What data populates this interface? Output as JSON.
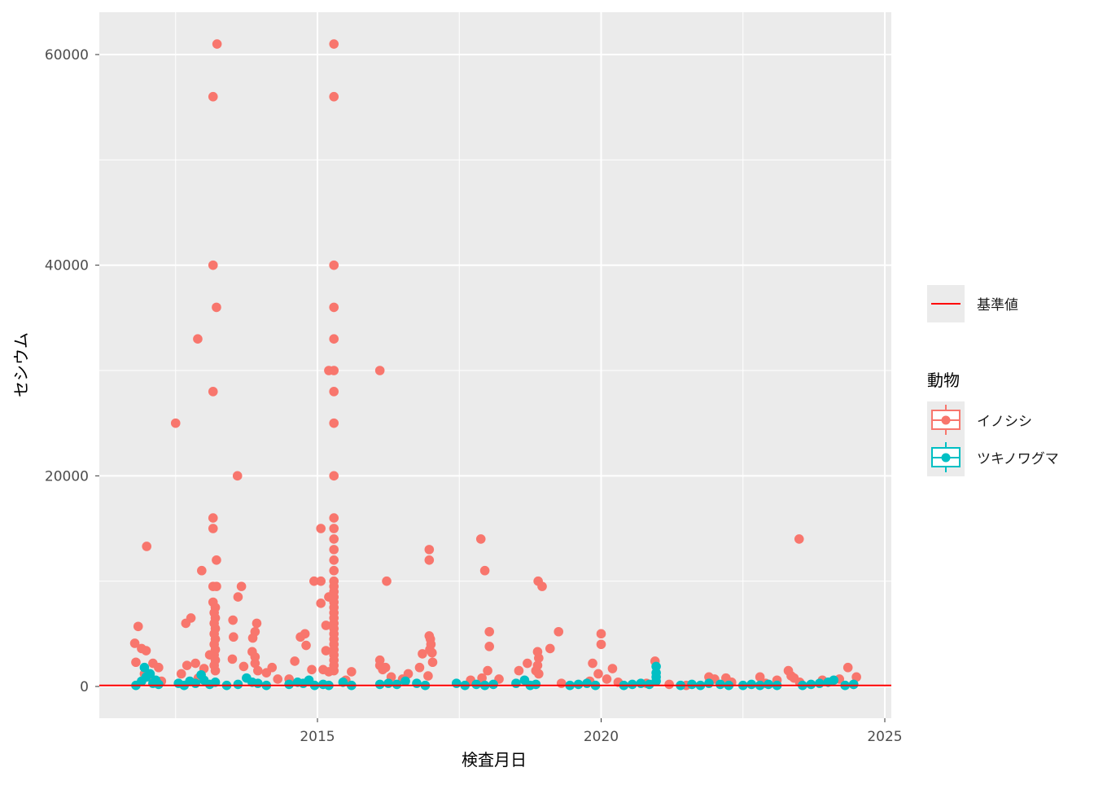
{
  "chart_data": {
    "type": "scatter",
    "xlabel": "検査月日",
    "ylabel": "セシウム",
    "xlim": [
      2011.1,
      2025.1
    ],
    "ylim": [
      -3000,
      64000
    ],
    "x_ticks": [
      2015,
      2020,
      2025
    ],
    "x_tick_labels": [
      "2015",
      "2020",
      "2025"
    ],
    "y_ticks": [
      0,
      20000,
      40000,
      60000
    ],
    "y_tick_labels": [
      "0",
      "20000",
      "40000",
      "60000"
    ],
    "grid": true,
    "legend_position": "right",
    "reference_line": {
      "name": "基準値",
      "value": 100,
      "color": "#FF0000"
    },
    "legend_title": "動物",
    "series": [
      {
        "name": "イノシシ",
        "color": "#F8766D",
        "points": [
          [
            2011.84,
            5700
          ],
          [
            2011.99,
            13300
          ],
          [
            2011.78,
            4100
          ],
          [
            2011.9,
            3600
          ],
          [
            2011.98,
            3400
          ],
          [
            2011.8,
            2300
          ],
          [
            2012.1,
            2200
          ],
          [
            2012.2,
            1800
          ],
          [
            2011.95,
            1200
          ],
          [
            2012.05,
            900
          ],
          [
            2012.25,
            500
          ],
          [
            2012.5,
            25000
          ],
          [
            2012.89,
            33000
          ],
          [
            2013.16,
            56000
          ],
          [
            2013.23,
            61000
          ],
          [
            2013.16,
            40000
          ],
          [
            2013.22,
            36000
          ],
          [
            2013.16,
            28000
          ],
          [
            2013.59,
            20000
          ],
          [
            2013.16,
            16000
          ],
          [
            2013.16,
            15000
          ],
          [
            2013.22,
            12000
          ],
          [
            2012.96,
            11000
          ],
          [
            2013.16,
            9500
          ],
          [
            2013.22,
            9500
          ],
          [
            2013.66,
            9500
          ],
          [
            2013.6,
            8500
          ],
          [
            2013.51,
            6300
          ],
          [
            2013.93,
            6000
          ],
          [
            2012.77,
            6500
          ],
          [
            2012.68,
            6000
          ],
          [
            2013.9,
            5200
          ],
          [
            2013.52,
            4700
          ],
          [
            2013.86,
            4600
          ],
          [
            2013.16,
            8000
          ],
          [
            2013.2,
            7500
          ],
          [
            2013.18,
            7000
          ],
          [
            2013.2,
            6500
          ],
          [
            2013.18,
            6000
          ],
          [
            2013.2,
            5500
          ],
          [
            2013.18,
            5000
          ],
          [
            2013.2,
            4500
          ],
          [
            2013.18,
            4000
          ],
          [
            2013.2,
            3500
          ],
          [
            2013.18,
            3000
          ],
          [
            2013.2,
            2500
          ],
          [
            2013.18,
            2000
          ],
          [
            2013.2,
            1500
          ],
          [
            2013.1,
            3000
          ],
          [
            2012.7,
            2000
          ],
          [
            2012.85,
            2200
          ],
          [
            2013.0,
            1700
          ],
          [
            2012.6,
            1200
          ],
          [
            2012.9,
            800
          ],
          [
            2013.5,
            2600
          ],
          [
            2013.7,
            1900
          ],
          [
            2013.85,
            3300
          ],
          [
            2013.9,
            2800
          ],
          [
            2013.9,
            2200
          ],
          [
            2013.95,
            1500
          ],
          [
            2014.2,
            1800
          ],
          [
            2014.1,
            1300
          ],
          [
            2014.3,
            700
          ],
          [
            2015.29,
            61000
          ],
          [
            2015.29,
            56000
          ],
          [
            2015.29,
            40000
          ],
          [
            2015.29,
            36000
          ],
          [
            2015.29,
            33000
          ],
          [
            2015.2,
            30000
          ],
          [
            2015.29,
            30000
          ],
          [
            2015.29,
            28000
          ],
          [
            2015.29,
            25000
          ],
          [
            2015.29,
            20000
          ],
          [
            2015.29,
            16000
          ],
          [
            2015.29,
            15000
          ],
          [
            2015.29,
            14000
          ],
          [
            2015.29,
            13000
          ],
          [
            2015.29,
            12000
          ],
          [
            2015.06,
            15000
          ],
          [
            2014.94,
            10000
          ],
          [
            2015.06,
            10000
          ],
          [
            2015.06,
            7900
          ],
          [
            2015.2,
            8500
          ],
          [
            2015.15,
            5800
          ],
          [
            2015.29,
            11000
          ],
          [
            2015.29,
            10000
          ],
          [
            2015.29,
            9500
          ],
          [
            2015.29,
            9000
          ],
          [
            2015.29,
            8500
          ],
          [
            2015.29,
            8000
          ],
          [
            2015.29,
            7500
          ],
          [
            2015.29,
            7000
          ],
          [
            2015.29,
            6500
          ],
          [
            2015.29,
            6000
          ],
          [
            2015.29,
            5500
          ],
          [
            2015.29,
            5000
          ],
          [
            2015.29,
            4500
          ],
          [
            2015.29,
            4000
          ],
          [
            2015.29,
            3500
          ],
          [
            2015.29,
            3000
          ],
          [
            2015.29,
            2500
          ],
          [
            2015.29,
            2000
          ],
          [
            2015.29,
            1500
          ],
          [
            2015.1,
            1600
          ],
          [
            2015.2,
            1400
          ],
          [
            2015.15,
            3400
          ],
          [
            2014.7,
            4700
          ],
          [
            2014.78,
            5000
          ],
          [
            2014.8,
            3900
          ],
          [
            2014.6,
            2400
          ],
          [
            2014.5,
            700
          ],
          [
            2014.9,
            1600
          ],
          [
            2015.6,
            1400
          ],
          [
            2015.5,
            600
          ],
          [
            2016.1,
            30000
          ],
          [
            2016.22,
            10000
          ],
          [
            2016.1,
            2500
          ],
          [
            2016.1,
            2000
          ],
          [
            2016.15,
            1600
          ],
          [
            2016.2,
            1800
          ],
          [
            2016.3,
            900
          ],
          [
            2016.5,
            700
          ],
          [
            2016.6,
            1200
          ],
          [
            2016.8,
            1800
          ],
          [
            2016.85,
            3100
          ],
          [
            2016.97,
            13000
          ],
          [
            2016.97,
            12000
          ],
          [
            2016.97,
            4800
          ],
          [
            2016.99,
            4500
          ],
          [
            2017.0,
            4000
          ],
          [
            2016.98,
            3500
          ],
          [
            2017.02,
            3200
          ],
          [
            2017.03,
            2300
          ],
          [
            2016.95,
            1000
          ],
          [
            2017.88,
            14000
          ],
          [
            2017.95,
            11000
          ],
          [
            2018.03,
            5200
          ],
          [
            2018.03,
            3800
          ],
          [
            2018.0,
            1500
          ],
          [
            2017.9,
            800
          ],
          [
            2017.7,
            600
          ],
          [
            2018.2,
            700
          ],
          [
            2018.55,
            1500
          ],
          [
            2018.7,
            2200
          ],
          [
            2018.85,
            1500
          ],
          [
            2018.89,
            10000
          ],
          [
            2018.96,
            9500
          ],
          [
            2018.88,
            3300
          ],
          [
            2018.9,
            2700
          ],
          [
            2018.88,
            2000
          ],
          [
            2018.9,
            1200
          ],
          [
            2019.1,
            3600
          ],
          [
            2019.25,
            5200
          ],
          [
            2019.3,
            300
          ],
          [
            2019.8,
            500
          ],
          [
            2019.95,
            1200
          ],
          [
            2019.85,
            2200
          ],
          [
            2020.0,
            5000
          ],
          [
            2020.0,
            4000
          ],
          [
            2020.1,
            700
          ],
          [
            2020.2,
            1700
          ],
          [
            2020.3,
            400
          ],
          [
            2020.95,
            2400
          ],
          [
            2020.8,
            300
          ],
          [
            2021.2,
            200
          ],
          [
            2021.5,
            100
          ],
          [
            2021.9,
            900
          ],
          [
            2022.0,
            700
          ],
          [
            2022.2,
            800
          ],
          [
            2022.3,
            400
          ],
          [
            2022.8,
            900
          ],
          [
            2022.9,
            300
          ],
          [
            2023.1,
            600
          ],
          [
            2023.3,
            1500
          ],
          [
            2023.35,
            1000
          ],
          [
            2023.49,
            14000
          ],
          [
            2023.4,
            800
          ],
          [
            2023.5,
            400
          ],
          [
            2023.9,
            600
          ],
          [
            2024.2,
            700
          ],
          [
            2024.35,
            1800
          ],
          [
            2024.5,
            900
          ],
          [
            2024.45,
            200
          ]
        ]
      },
      {
        "name": "ツキノワグマ",
        "color": "#00BFC4",
        "points": [
          [
            2011.8,
            100
          ],
          [
            2011.9,
            500
          ],
          [
            2011.95,
            1800
          ],
          [
            2011.98,
            900
          ],
          [
            2012.05,
            1200
          ],
          [
            2012.1,
            300
          ],
          [
            2012.15,
            600
          ],
          [
            2012.2,
            200
          ],
          [
            2012.55,
            300
          ],
          [
            2012.65,
            100
          ],
          [
            2012.75,
            500
          ],
          [
            2012.85,
            300
          ],
          [
            2012.95,
            1100
          ],
          [
            2013.0,
            600
          ],
          [
            2013.1,
            200
          ],
          [
            2013.2,
            400
          ],
          [
            2013.4,
            100
          ],
          [
            2013.6,
            200
          ],
          [
            2013.75,
            800
          ],
          [
            2013.85,
            400
          ],
          [
            2013.95,
            300
          ],
          [
            2014.1,
            100
          ],
          [
            2014.5,
            200
          ],
          [
            2014.65,
            400
          ],
          [
            2014.75,
            300
          ],
          [
            2014.85,
            600
          ],
          [
            2014.95,
            100
          ],
          [
            2015.1,
            200
          ],
          [
            2015.2,
            100
          ],
          [
            2015.45,
            400
          ],
          [
            2015.6,
            100
          ],
          [
            2016.1,
            200
          ],
          [
            2016.25,
            300
          ],
          [
            2016.4,
            200
          ],
          [
            2016.55,
            500
          ],
          [
            2016.75,
            300
          ],
          [
            2016.9,
            100
          ],
          [
            2017.45,
            300
          ],
          [
            2017.6,
            100
          ],
          [
            2017.8,
            200
          ],
          [
            2017.95,
            100
          ],
          [
            2018.1,
            200
          ],
          [
            2018.5,
            300
          ],
          [
            2018.65,
            600
          ],
          [
            2018.75,
            100
          ],
          [
            2018.85,
            200
          ],
          [
            2019.45,
            100
          ],
          [
            2019.6,
            200
          ],
          [
            2019.75,
            300
          ],
          [
            2019.9,
            100
          ],
          [
            2020.4,
            100
          ],
          [
            2020.55,
            200
          ],
          [
            2020.7,
            300
          ],
          [
            2020.85,
            200
          ],
          [
            2020.97,
            1900
          ],
          [
            2020.97,
            1300
          ],
          [
            2020.97,
            900
          ],
          [
            2020.97,
            500
          ],
          [
            2021.4,
            100
          ],
          [
            2021.6,
            200
          ],
          [
            2021.75,
            100
          ],
          [
            2021.9,
            300
          ],
          [
            2022.1,
            200
          ],
          [
            2022.25,
            100
          ],
          [
            2022.5,
            100
          ],
          [
            2022.65,
            200
          ],
          [
            2022.8,
            100
          ],
          [
            2022.95,
            200
          ],
          [
            2023.1,
            100
          ],
          [
            2023.55,
            100
          ],
          [
            2023.7,
            200
          ],
          [
            2023.85,
            300
          ],
          [
            2024.0,
            400
          ],
          [
            2024.1,
            600
          ],
          [
            2024.3,
            100
          ],
          [
            2024.45,
            200
          ]
        ]
      }
    ]
  }
}
